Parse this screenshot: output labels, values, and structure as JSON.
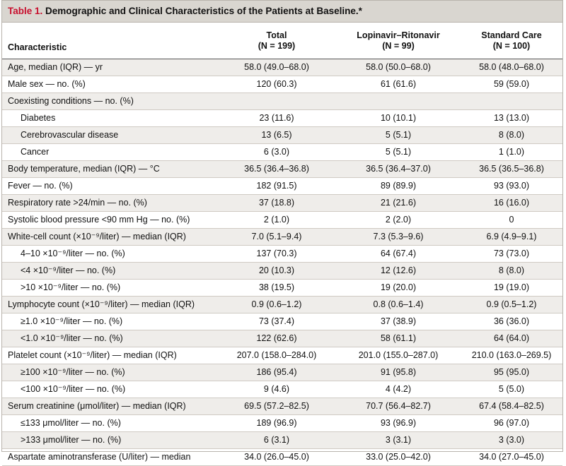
{
  "table": {
    "label": "Table 1.",
    "title": " Demographic and Clinical Characteristics of the Patients at Baseline.*",
    "headers": [
      {
        "l1": "Characteristic",
        "l2": ""
      },
      {
        "l1": "Total",
        "l2": "(N = 199)"
      },
      {
        "l1": "Lopinavir–Ritonavir",
        "l2": "(N = 99)"
      },
      {
        "l1": "Standard Care",
        "l2": "(N = 100)"
      }
    ],
    "rows": [
      {
        "label": "Age, median (IQR) — yr",
        "total": "58.0 (49.0–68.0)",
        "lr": "58.0 (50.0–68.0)",
        "sc": "58.0 (48.0–68.0)"
      },
      {
        "label": "Male sex — no. (%)",
        "total": "120 (60.3)",
        "lr": "61 (61.6)",
        "sc": "59 (59.0)"
      },
      {
        "label": "Coexisting conditions — no. (%)",
        "total": "",
        "lr": "",
        "sc": ""
      },
      {
        "label": "Diabetes",
        "total": "23 (11.6)",
        "lr": "10 (10.1)",
        "sc": "13 (13.0)"
      },
      {
        "label": "Cerebrovascular disease",
        "total": "13 (6.5)",
        "lr": "5 (5.1)",
        "sc": "8 (8.0)"
      },
      {
        "label": "Cancer",
        "total": "6 (3.0)",
        "lr": "5 (5.1)",
        "sc": "1 (1.0)"
      },
      {
        "label": "Body temperature, median (IQR) — °C",
        "total": "36.5 (36.4–36.8)",
        "lr": "36.5 (36.4–37.0)",
        "sc": "36.5 (36.5–36.8)"
      },
      {
        "label": "Fever — no. (%)",
        "total": "182 (91.5)",
        "lr": "89 (89.9)",
        "sc": "93 (93.0)"
      },
      {
        "label": "Respiratory rate >24/min — no. (%)",
        "total": "37 (18.8)",
        "lr": "21 (21.6)",
        "sc": "16 (16.0)"
      },
      {
        "label": "Systolic blood pressure <90 mm Hg — no. (%)",
        "total": "2 (1.0)",
        "lr": "2 (2.0)",
        "sc": "0"
      },
      {
        "label": "White-cell count (×10⁻⁹/liter) — median (IQR)",
        "total": "7.0 (5.1–9.4)",
        "lr": "7.3 (5.3–9.6)",
        "sc": "6.9 (4.9–9.1)"
      },
      {
        "label": "4–10 ×10⁻⁹/liter — no. (%)",
        "total": "137 (70.3)",
        "lr": "64 (67.4)",
        "sc": "73 (73.0)"
      },
      {
        "label": "<4 ×10⁻⁹/liter — no. (%)",
        "total": "20 (10.3)",
        "lr": "12 (12.6)",
        "sc": "8 (8.0)"
      },
      {
        "label": ">10 ×10⁻⁹/liter — no. (%)",
        "total": "38 (19.5)",
        "lr": "19 (20.0)",
        "sc": "19 (19.0)"
      },
      {
        "label": "Lymphocyte count (×10⁻⁹/liter) — median (IQR)",
        "total": "0.9 (0.6–1.2)",
        "lr": "0.8 (0.6–1.4)",
        "sc": "0.9 (0.5–1.2)"
      },
      {
        "label": "≥1.0 ×10⁻⁹/liter — no. (%)",
        "total": "73 (37.4)",
        "lr": "37 (38.9)",
        "sc": "36 (36.0)"
      },
      {
        "label": "<1.0 ×10⁻⁹/liter — no. (%)",
        "total": "122 (62.6)",
        "lr": "58 (61.1)",
        "sc": "64 (64.0)"
      },
      {
        "label": "Platelet count (×10⁻⁹/liter) — median (IQR)",
        "total": "207.0 (158.0–284.0)",
        "lr": "201.0 (155.0–287.0)",
        "sc": "210.0 (163.0–269.5)"
      },
      {
        "label": "≥100 ×10⁻⁹/liter — no. (%)",
        "total": "186 (95.4)",
        "lr": "91 (95.8)",
        "sc": "95 (95.0)"
      },
      {
        "label": "<100 ×10⁻⁹/liter — no. (%)",
        "total": "9 (4.6)",
        "lr": "4 (4.2)",
        "sc": "5 (5.0)"
      },
      {
        "label": "Serum creatinine (μmol/liter) — median (IQR)",
        "total": "69.5 (57.2–82.5)",
        "lr": "70.7 (56.4–82.7)",
        "sc": "67.4 (58.4–82.5)"
      },
      {
        "label": "≤133 μmol/liter — no. (%)",
        "total": "189 (96.9)",
        "lr": "93 (96.9)",
        "sc": "96 (97.0)"
      },
      {
        "label": ">133 μmol/liter — no. (%)",
        "total": "6 (3.1)",
        "lr": "3 (3.1)",
        "sc": "3 (3.0)"
      },
      {
        "label": "Aspartate aminotransferase (U/liter) — median",
        "total": "34.0 (26.0–45.0)",
        "lr": "33.0 (25.0–42.0)",
        "sc": "34.0 (27.0–45.0)"
      }
    ]
  }
}
